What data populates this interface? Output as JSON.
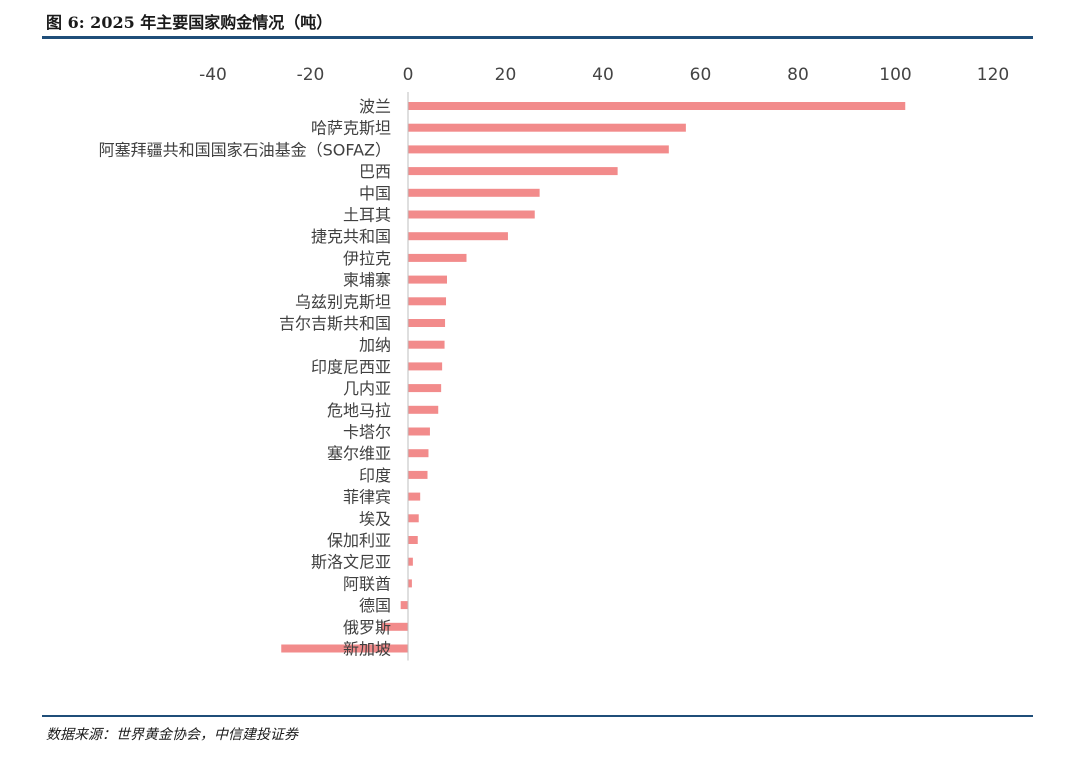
{
  "title": "图 6: 2025 年主要国家购金情况（吨）",
  "source": "数据来源：世界黄金协会，中信建投证券",
  "chart_data": {
    "type": "bar",
    "orientation": "horizontal",
    "title": "图 6: 2025 年主要国家购金情况（吨）",
    "xlabel": "",
    "ylabel": "",
    "xlim": [
      -40,
      120
    ],
    "xticks": [
      "-40",
      "-20",
      "0",
      "20",
      "40",
      "60",
      "80",
      "100",
      "120"
    ],
    "xtick_values": [
      -40,
      -20,
      0,
      20,
      40,
      60,
      80,
      100,
      120
    ],
    "axis_position": "top",
    "grid": false,
    "legend": "none",
    "bar_color": "#f28b8b",
    "categories": [
      "波兰",
      "哈萨克斯坦",
      "阿塞拜疆共和国国家石油基金（SOFAZ）",
      "巴西",
      "中国",
      "土耳其",
      "捷克共和国",
      "伊拉克",
      "柬埔寨",
      "乌兹别克斯坦",
      "吉尔吉斯共和国",
      "加纳",
      "印度尼西亚",
      "几内亚",
      "危地马拉",
      "卡塔尔",
      "塞尔维亚",
      "印度",
      "菲律宾",
      "埃及",
      "保加利亚",
      "斯洛文尼亚",
      "阿联酋",
      "德国",
      "俄罗斯",
      "新加坡"
    ],
    "values": [
      102,
      57,
      53.5,
      43,
      27,
      26,
      20.5,
      12,
      8,
      7.8,
      7.6,
      7.5,
      7,
      6.8,
      6.2,
      4.5,
      4.2,
      4,
      2.5,
      2.2,
      2,
      1,
      0.8,
      -1.5,
      -5.5,
      -26
    ]
  }
}
